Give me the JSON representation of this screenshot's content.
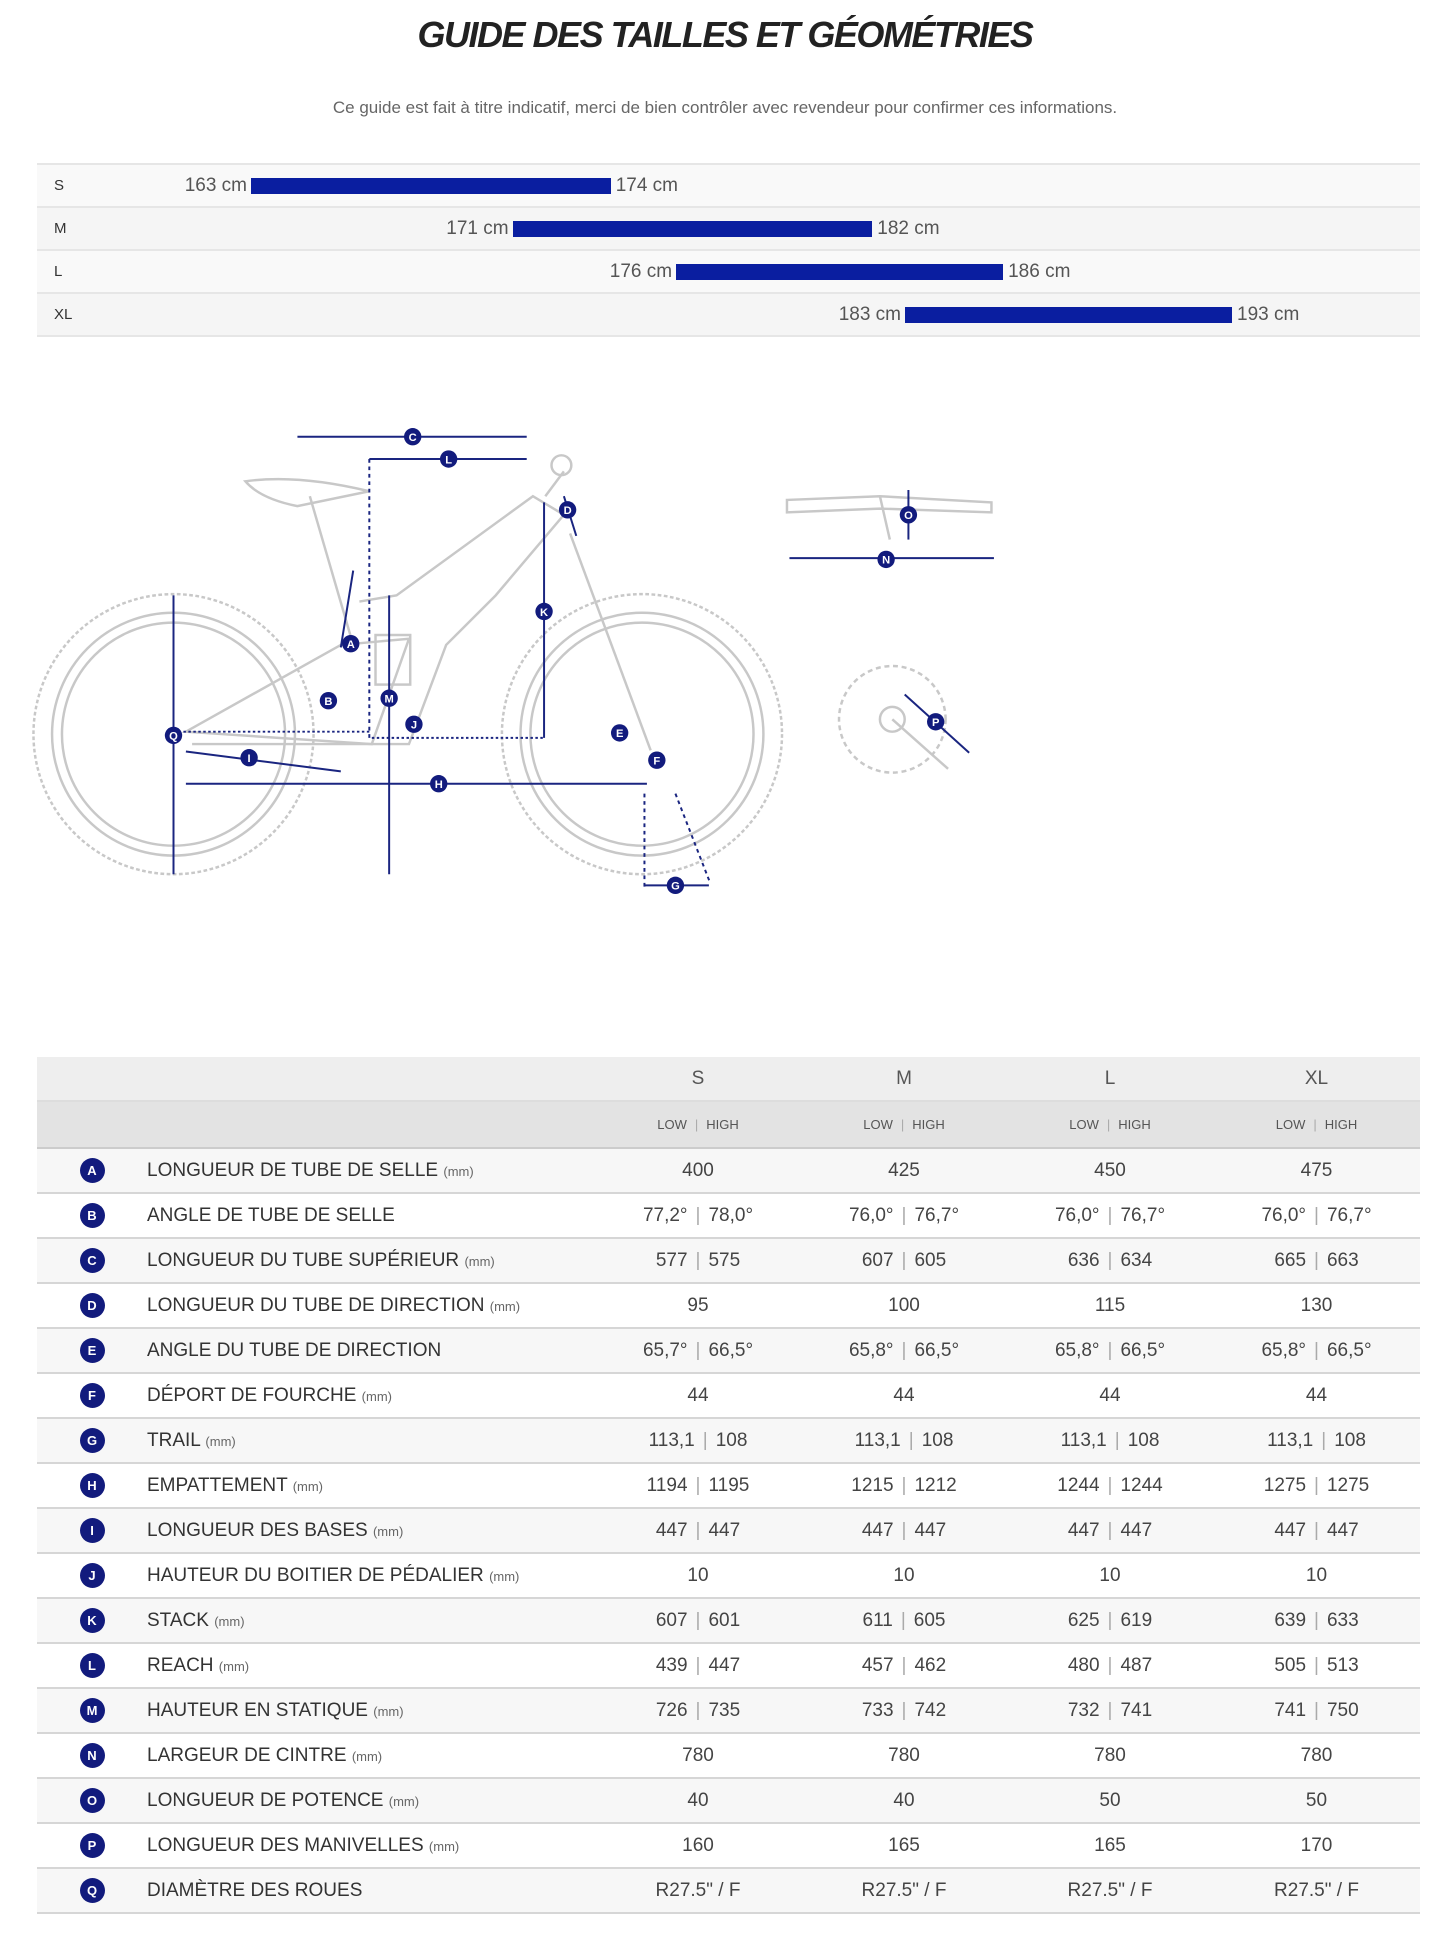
{
  "header": {
    "title": "GUIDE DES TAILLES ET GÉOMÉTRIES",
    "subtitle": "Ce guide est fait à titre indicatif, merci de bien contrôler avec revendeur pour confirmer ces informations."
  },
  "colors": {
    "bar": "#0a1ea0",
    "badge": "#121b7d"
  },
  "rider_sizes": [
    {
      "size": "S",
      "min": "163 cm",
      "max": "174 cm",
      "min_cm": 163,
      "max_cm": 174
    },
    {
      "size": "M",
      "min": "171 cm",
      "max": "182 cm",
      "min_cm": 171,
      "max_cm": 182
    },
    {
      "size": "L",
      "min": "176 cm",
      "max": "186 cm",
      "min_cm": 176,
      "max_cm": 186
    },
    {
      "size": "XL",
      "min": "183 cm",
      "max": "193 cm",
      "min_cm": 183,
      "max_cm": 193
    }
  ],
  "diagram": {
    "markers": [
      "A",
      "B",
      "C",
      "D",
      "E",
      "F",
      "G",
      "H",
      "I",
      "J",
      "K",
      "L",
      "M",
      "N",
      "O",
      "P",
      "Q"
    ]
  },
  "geometry": {
    "sizes": [
      "S",
      "M",
      "L",
      "XL"
    ],
    "low_label": "LOW",
    "high_label": "HIGH",
    "rows": [
      {
        "letter": "A",
        "label": "LONGUEUR DE TUBE DE SELLE",
        "unit": "(mm)",
        "values": [
          [
            "400"
          ],
          [
            "425"
          ],
          [
            "450"
          ],
          [
            "475"
          ]
        ]
      },
      {
        "letter": "B",
        "label": "ANGLE DE TUBE DE SELLE",
        "unit": "",
        "values": [
          [
            "77,2°",
            "78,0°"
          ],
          [
            "76,0°",
            "76,7°"
          ],
          [
            "76,0°",
            "76,7°"
          ],
          [
            "76,0°",
            "76,7°"
          ]
        ]
      },
      {
        "letter": "C",
        "label": "LONGUEUR DU TUBE SUPÉRIEUR",
        "unit": "(mm)",
        "values": [
          [
            "577",
            "575"
          ],
          [
            "607",
            "605"
          ],
          [
            "636",
            "634"
          ],
          [
            "665",
            "663"
          ]
        ]
      },
      {
        "letter": "D",
        "label": "LONGUEUR DU TUBE DE DIRECTION",
        "unit": "(mm)",
        "values": [
          [
            "95"
          ],
          [
            "100"
          ],
          [
            "115"
          ],
          [
            "130"
          ]
        ]
      },
      {
        "letter": "E",
        "label": "ANGLE DU TUBE DE DIRECTION",
        "unit": "",
        "values": [
          [
            "65,7°",
            "66,5°"
          ],
          [
            "65,8°",
            "66,5°"
          ],
          [
            "65,8°",
            "66,5°"
          ],
          [
            "65,8°",
            "66,5°"
          ]
        ]
      },
      {
        "letter": "F",
        "label": "DÉPORT DE FOURCHE",
        "unit": "(mm)",
        "values": [
          [
            "44"
          ],
          [
            "44"
          ],
          [
            "44"
          ],
          [
            "44"
          ]
        ]
      },
      {
        "letter": "G",
        "label": "TRAIL",
        "unit": "(mm)",
        "values": [
          [
            "113,1",
            "108"
          ],
          [
            "113,1",
            "108"
          ],
          [
            "113,1",
            "108"
          ],
          [
            "113,1",
            "108"
          ]
        ]
      },
      {
        "letter": "H",
        "label": "EMPATTEMENT",
        "unit": "(mm)",
        "values": [
          [
            "1194",
            "1195"
          ],
          [
            "1215",
            "1212"
          ],
          [
            "1244",
            "1244"
          ],
          [
            "1275",
            "1275"
          ]
        ]
      },
      {
        "letter": "I",
        "label": "LONGUEUR DES BASES",
        "unit": "(mm)",
        "values": [
          [
            "447",
            "447"
          ],
          [
            "447",
            "447"
          ],
          [
            "447",
            "447"
          ],
          [
            "447",
            "447"
          ]
        ]
      },
      {
        "letter": "J",
        "label": "HAUTEUR DU BOITIER DE PÉDALIER",
        "unit": "(mm)",
        "values": [
          [
            "10"
          ],
          [
            "10"
          ],
          [
            "10"
          ],
          [
            "10"
          ]
        ]
      },
      {
        "letter": "K",
        "label": "STACK",
        "unit": "(mm)",
        "values": [
          [
            "607",
            "601"
          ],
          [
            "611",
            "605"
          ],
          [
            "625",
            "619"
          ],
          [
            "639",
            "633"
          ]
        ]
      },
      {
        "letter": "L",
        "label": "REACH",
        "unit": "(mm)",
        "values": [
          [
            "439",
            "447"
          ],
          [
            "457",
            "462"
          ],
          [
            "480",
            "487"
          ],
          [
            "505",
            "513"
          ]
        ]
      },
      {
        "letter": "M",
        "label": "HAUTEUR EN STATIQUE",
        "unit": "(mm)",
        "values": [
          [
            "726",
            "735"
          ],
          [
            "733",
            "742"
          ],
          [
            "732",
            "741"
          ],
          [
            "741",
            "750"
          ]
        ]
      },
      {
        "letter": "N",
        "label": "LARGEUR DE CINTRE",
        "unit": "(mm)",
        "values": [
          [
            "780"
          ],
          [
            "780"
          ],
          [
            "780"
          ],
          [
            "780"
          ]
        ]
      },
      {
        "letter": "O",
        "label": "LONGUEUR DE POTENCE",
        "unit": "(mm)",
        "values": [
          [
            "40"
          ],
          [
            "40"
          ],
          [
            "50"
          ],
          [
            "50"
          ]
        ]
      },
      {
        "letter": "P",
        "label": "LONGUEUR DES MANIVELLES",
        "unit": "(mm)",
        "values": [
          [
            "160"
          ],
          [
            "165"
          ],
          [
            "165"
          ],
          [
            "170"
          ]
        ]
      },
      {
        "letter": "Q",
        "label": "DIAMÈTRE DES ROUES",
        "unit": "",
        "values": [
          [
            "R27.5\" / F"
          ],
          [
            "R27.5\" / F"
          ],
          [
            "R27.5\" / F"
          ],
          [
            "R27.5\" / F"
          ]
        ]
      }
    ]
  }
}
